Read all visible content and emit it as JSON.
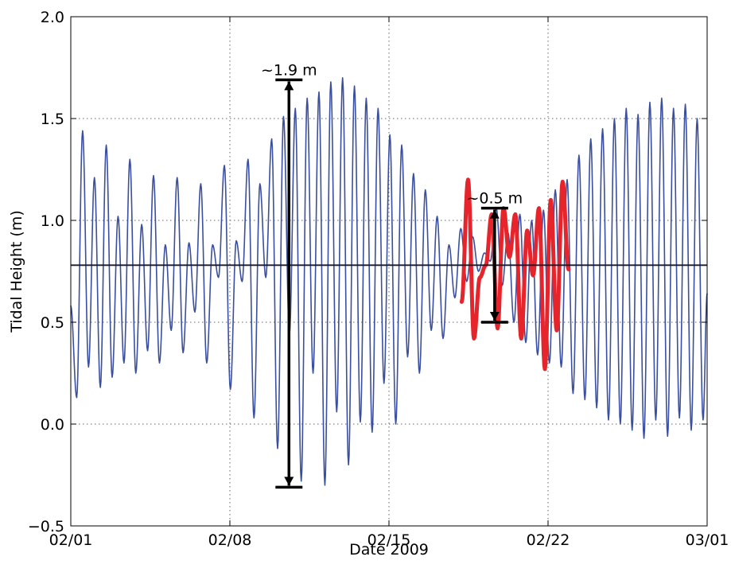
{
  "chart_data": {
    "type": "line",
    "xlabel": "Date 2009",
    "ylabel": "Tidal Height (m)",
    "x_ticks": [
      {
        "label": "02/01",
        "day": 0
      },
      {
        "label": "02/08",
        "day": 7
      },
      {
        "label": "02/15",
        "day": 14
      },
      {
        "label": "02/22",
        "day": 21
      },
      {
        "label": "03/01",
        "day": 28
      }
    ],
    "y_ticks": [
      {
        "label": "−0.5",
        "value": -0.5
      },
      {
        "label": "0.0",
        "value": 0.0
      },
      {
        "label": "0.5",
        "value": 0.5
      },
      {
        "label": "1.0",
        "value": 1.0
      },
      {
        "label": "1.5",
        "value": 1.5
      },
      {
        "label": "2.0",
        "value": 2.0
      }
    ],
    "xlim": [
      "02/01",
      "03/01"
    ],
    "ylim": [
      -0.5,
      2.0
    ],
    "grid": true,
    "mean_level": 0.78,
    "series": [
      {
        "color": "#3b4fa0",
        "extrema_days": [
          0.0,
          0.26,
          0.52,
          0.78,
          1.04,
          1.3,
          1.56,
          1.82,
          2.08,
          2.34,
          2.6,
          2.86,
          3.12,
          3.38,
          3.64,
          3.9,
          4.16,
          4.42,
          4.68,
          4.94,
          5.2,
          5.46,
          5.72,
          5.98,
          6.24,
          6.5,
          6.76,
          7.02,
          7.28,
          7.54,
          7.8,
          8.06,
          8.32,
          8.58,
          8.84,
          9.1,
          9.36,
          9.62,
          9.88,
          10.14,
          10.4,
          10.66,
          10.92,
          11.18,
          11.44,
          11.7,
          11.96,
          12.22,
          12.48,
          12.74,
          13.0,
          13.26,
          13.52,
          13.78,
          14.04,
          14.3,
          14.56,
          14.82,
          15.08,
          15.34,
          15.6,
          15.86,
          16.12,
          16.38,
          16.64,
          16.9,
          17.16,
          17.42,
          17.68,
          17.94,
          18.2,
          18.46,
          18.72,
          18.98,
          19.24,
          19.5,
          19.76,
          20.02,
          20.28,
          20.54,
          20.8,
          21.06,
          21.32,
          21.58,
          21.84,
          22.1,
          22.36,
          22.62,
          22.88,
          23.14,
          23.4,
          23.66,
          23.92,
          24.18,
          24.44,
          24.7,
          24.96,
          25.22,
          25.48,
          25.74,
          26.0,
          26.26,
          26.52,
          26.78,
          27.04,
          27.3,
          27.56,
          27.82,
          28.0
        ],
        "extrema_values": [
          0.58,
          0.13,
          1.44,
          0.28,
          1.21,
          0.18,
          1.37,
          0.23,
          1.02,
          0.3,
          1.3,
          0.25,
          0.98,
          0.36,
          1.22,
          0.3,
          0.88,
          0.46,
          1.21,
          0.35,
          0.89,
          0.55,
          1.18,
          0.3,
          0.88,
          0.72,
          1.27,
          0.17,
          0.9,
          0.7,
          1.3,
          0.03,
          1.18,
          0.72,
          1.4,
          -0.12,
          1.51,
          0.44,
          1.55,
          -0.28,
          1.6,
          0.25,
          1.63,
          -0.3,
          1.68,
          0.06,
          1.7,
          -0.2,
          1.66,
          0.01,
          1.6,
          -0.04,
          1.55,
          0.2,
          1.42,
          0.0,
          1.37,
          0.33,
          1.23,
          0.25,
          1.15,
          0.46,
          1.02,
          0.42,
          0.88,
          0.62,
          0.96,
          0.7,
          0.92,
          0.75,
          0.84,
          0.8,
          1.06,
          0.68,
          0.94,
          0.5,
          1.03,
          0.4,
          1.0,
          0.34,
          1.05,
          0.3,
          1.15,
          0.28,
          1.2,
          0.15,
          1.32,
          0.12,
          1.4,
          0.08,
          1.45,
          0.02,
          1.5,
          0.0,
          1.55,
          -0.03,
          1.52,
          -0.07,
          1.58,
          0.02,
          1.6,
          -0.06,
          1.55,
          0.03,
          1.57,
          -0.03,
          1.5,
          0.02,
          0.64
        ]
      },
      {
        "color": "#e5242b",
        "extrema_days": [
          17.2,
          17.48,
          17.74,
          18.0,
          18.26,
          18.52,
          18.78,
          19.04,
          19.3,
          19.56,
          19.82,
          20.08,
          20.34,
          20.6,
          20.86,
          21.12,
          21.38,
          21.64,
          21.9
        ],
        "extrema_values": [
          0.6,
          1.2,
          0.42,
          0.72,
          0.78,
          1.03,
          0.47,
          1.06,
          0.82,
          1.03,
          0.42,
          0.95,
          0.73,
          1.06,
          0.27,
          1.1,
          0.46,
          1.19,
          0.76
        ]
      }
    ],
    "annotations": [
      {
        "text": "~1.9 m",
        "day": 9.6,
        "low": -0.31,
        "high": 1.69
      },
      {
        "text": "~0.5 m",
        "day": 18.65,
        "low": 0.5,
        "high": 1.06
      }
    ]
  }
}
